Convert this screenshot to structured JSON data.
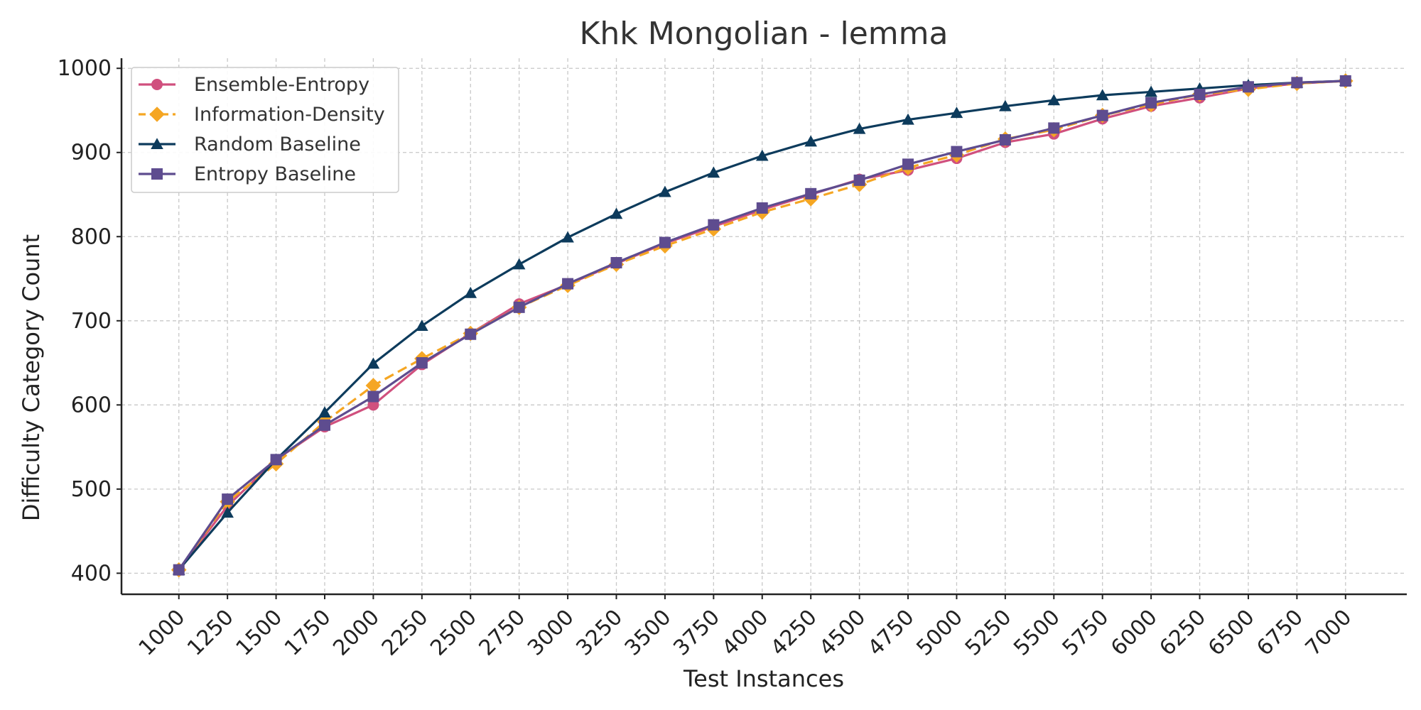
{
  "chart_data": {
    "type": "line",
    "title": "Khk Mongolian - lemma",
    "xlabel": "Test Instances",
    "ylabel": "Difficulty Category Count",
    "x": [
      1000,
      1250,
      1500,
      1750,
      2000,
      2250,
      2500,
      2750,
      3000,
      3250,
      3500,
      3750,
      4000,
      4250,
      4500,
      4750,
      5000,
      5250,
      5500,
      5750,
      6000,
      6250,
      6500,
      6750,
      7000
    ],
    "x_tick_labels": [
      "1000",
      "1250",
      "1500",
      "1750",
      "2000",
      "2250",
      "2500",
      "2750",
      "3000",
      "3250",
      "3500",
      "3750",
      "4000",
      "4250",
      "4500",
      "4750",
      "5000",
      "5250",
      "5500",
      "5750",
      "6000",
      "6250",
      "6500",
      "6750",
      "7000"
    ],
    "y_ticks": [
      400,
      500,
      600,
      700,
      800,
      900,
      1000
    ],
    "y_tick_labels": [
      "400",
      "500",
      "600",
      "700",
      "800",
      "900",
      "1000"
    ],
    "xlim": [
      705,
      7315
    ],
    "ylim": [
      375,
      1012
    ],
    "grid": true,
    "legend_position": "top-left",
    "series": [
      {
        "name": "Ensemble-Entropy",
        "color": "#d0507e",
        "marker": "circle",
        "line_style": "solid",
        "values": [
          404,
          480,
          535,
          574,
          600,
          648,
          685,
          720,
          743,
          768,
          792,
          812,
          832,
          850,
          868,
          879,
          893,
          912,
          922,
          940,
          955,
          965,
          976,
          982,
          985
        ]
      },
      {
        "name": "Information-Density",
        "color": "#f5a623",
        "marker": "diamond",
        "line_style": "dashed",
        "values": [
          404,
          485,
          530,
          580,
          623,
          655,
          685,
          716,
          742,
          767,
          789,
          809,
          829,
          845,
          862,
          882,
          897,
          916,
          927,
          944,
          957,
          969,
          975,
          982,
          985
        ]
      },
      {
        "name": "Random Baseline",
        "color": "#0d3b5c",
        "marker": "triangle",
        "line_style": "solid",
        "values": [
          404,
          472,
          535,
          591,
          649,
          694,
          733,
          767,
          799,
          827,
          853,
          876,
          896,
          913,
          928,
          939,
          947,
          955,
          962,
          968,
          972,
          976,
          980,
          983,
          985
        ]
      },
      {
        "name": "Entropy Baseline",
        "color": "#5e4c8f",
        "marker": "square",
        "line_style": "solid",
        "values": [
          404,
          488,
          535,
          576,
          610,
          650,
          684,
          716,
          744,
          769,
          793,
          814,
          834,
          851,
          867,
          886,
          901,
          915,
          929,
          944,
          959,
          969,
          978,
          983,
          985
        ]
      }
    ]
  }
}
